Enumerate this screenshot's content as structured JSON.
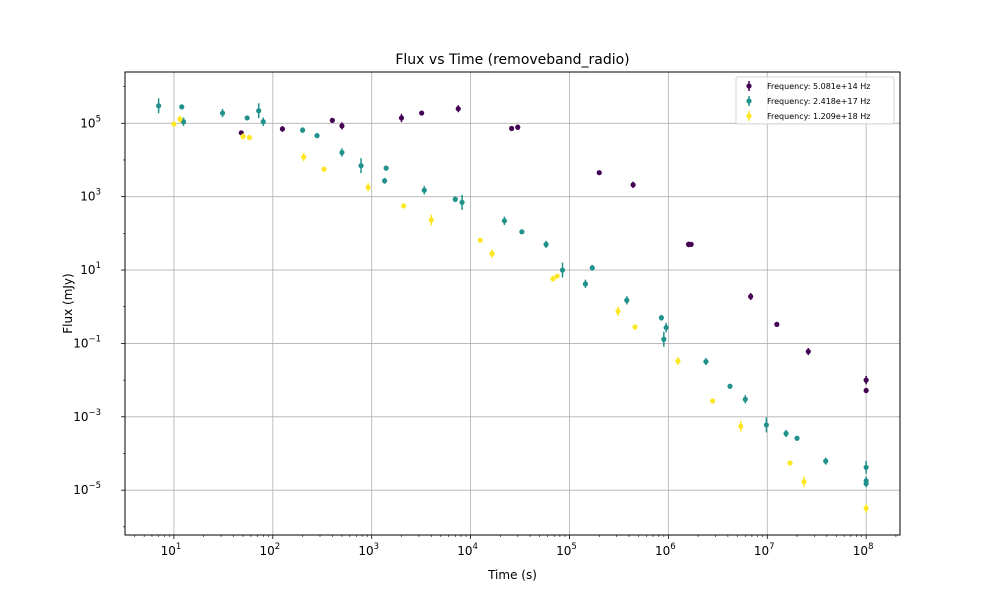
{
  "chart_data": {
    "type": "scatter",
    "title": "Flux vs Time (removeband_radio)",
    "xlabel": "Time (s)",
    "ylabel": "Flux (mJy)",
    "xscale": "log",
    "yscale": "log",
    "xlim": [
      3.2,
      220000000.0
    ],
    "ylim": [
      6e-07,
      2500000.0
    ],
    "grid": true,
    "legend_position": "top-right",
    "x_ticks": [
      {
        "value": 10,
        "base": "10",
        "exp": "1"
      },
      {
        "value": 100,
        "base": "10",
        "exp": "2"
      },
      {
        "value": 1000,
        "base": "10",
        "exp": "3"
      },
      {
        "value": 10000,
        "base": "10",
        "exp": "4"
      },
      {
        "value": 100000,
        "base": "10",
        "exp": "5"
      },
      {
        "value": 1000000,
        "base": "10",
        "exp": "6"
      },
      {
        "value": 10000000,
        "base": "10",
        "exp": "7"
      },
      {
        "value": 100000000,
        "base": "10",
        "exp": "8"
      }
    ],
    "y_ticks": [
      {
        "value": 1e-05,
        "base": "10",
        "exp": "−5"
      },
      {
        "value": 0.001,
        "base": "10",
        "exp": "−3"
      },
      {
        "value": 0.1,
        "base": "10",
        "exp": "−1"
      },
      {
        "value": 10,
        "base": "10",
        "exp": "1"
      },
      {
        "value": 1000,
        "base": "10",
        "exp": "3"
      },
      {
        "value": 100000,
        "base": "10",
        "exp": "5"
      }
    ],
    "series": [
      {
        "name": "Frequency: 5.081e+14 Hz",
        "color": "#440154",
        "points": [
          [
            48,
            55000,
            1.15
          ],
          [
            125,
            70000,
            1.2
          ],
          [
            400,
            120000,
            1.1
          ],
          [
            500,
            85000,
            1.25
          ],
          [
            2000,
            140000,
            1.3
          ],
          [
            3200,
            190000,
            1.12
          ],
          [
            7500,
            250000,
            1.25
          ],
          [
            26000,
            72000,
            1.12
          ],
          [
            30000,
            78000,
            1.18
          ],
          [
            200000,
            4500,
            1.12
          ],
          [
            440000,
            2100,
            1.22
          ],
          [
            1600000,
            50,
            1.2
          ],
          [
            1700000,
            50,
            1.15
          ],
          [
            6800000,
            1.9,
            1.25
          ],
          [
            12500000,
            0.33,
            1.1
          ],
          [
            26000000,
            0.06,
            1.25
          ],
          [
            100000000,
            0.01,
            1.3
          ],
          [
            100000000,
            0.0052,
            1.15
          ]
        ]
      },
      {
        "name": "Frequency: 2.418e+17 Hz",
        "color": "#21918c",
        "points": [
          [
            7,
            300000,
            1.6
          ],
          [
            12,
            280000,
            1.1
          ],
          [
            12.5,
            110000,
            1.3
          ],
          [
            31,
            190000,
            1.3
          ],
          [
            55,
            140000,
            1.15
          ],
          [
            72,
            220000,
            1.6
          ],
          [
            80,
            110000,
            1.3
          ],
          [
            200,
            65000,
            1.2
          ],
          [
            280,
            46000,
            1.12
          ],
          [
            500,
            16000,
            1.3
          ],
          [
            780,
            7000,
            1.6
          ],
          [
            1400,
            6000,
            1.15
          ],
          [
            1350,
            2700,
            1.2
          ],
          [
            3400,
            1500,
            1.3
          ],
          [
            7000,
            850,
            1.2
          ],
          [
            8200,
            700,
            1.6
          ],
          [
            22000,
            220,
            1.3
          ],
          [
            33000,
            110,
            1.15
          ],
          [
            58000,
            50,
            1.25
          ],
          [
            85000,
            10,
            1.6
          ],
          [
            145000,
            4.2,
            1.3
          ],
          [
            170000,
            11.5,
            1.2
          ],
          [
            380000,
            1.5,
            1.3
          ],
          [
            850000,
            0.5,
            1.2
          ],
          [
            950000,
            0.27,
            1.35
          ],
          [
            900000,
            0.13,
            1.6
          ],
          [
            2400000,
            0.032,
            1.25
          ],
          [
            4200000,
            0.0068,
            1.15
          ],
          [
            6000000,
            0.003,
            1.3
          ],
          [
            9800000,
            0.0006,
            1.6
          ],
          [
            15500000,
            0.00035,
            1.25
          ],
          [
            20000000,
            0.00026,
            1.15
          ],
          [
            39000000,
            6.2e-05,
            1.25
          ],
          [
            100000000,
            4.2e-05,
            1.5
          ],
          [
            100000000,
            1.8e-05,
            1.3
          ],
          [
            100000000,
            1.5e-05,
            1.25
          ]
        ]
      },
      {
        "name": "Frequency: 1.209e+18 Hz",
        "color": "#fde725",
        "points": [
          [
            10,
            95000,
            1.15
          ],
          [
            11.5,
            130000,
            1.25
          ],
          [
            50,
            44000,
            1.2
          ],
          [
            58,
            41000,
            1.15
          ],
          [
            205,
            12000,
            1.3
          ],
          [
            330,
            5600,
            1.15
          ],
          [
            920,
            1800,
            1.3
          ],
          [
            2100,
            560,
            1.15
          ],
          [
            4000,
            230,
            1.4
          ],
          [
            12500,
            65,
            1.15
          ],
          [
            16500,
            28,
            1.3
          ],
          [
            68000,
            5.8,
            1.2
          ],
          [
            75000,
            6.8,
            1.15
          ],
          [
            310000,
            0.75,
            1.35
          ],
          [
            460000,
            0.28,
            1.15
          ],
          [
            1250000,
            0.033,
            1.3
          ],
          [
            2800000,
            0.0027,
            1.15
          ],
          [
            5400000,
            0.00055,
            1.4
          ],
          [
            17000000,
            5.5e-05,
            1.15
          ],
          [
            23500000,
            1.7e-05,
            1.4
          ],
          [
            100000000,
            3.2e-06,
            1.3
          ]
        ]
      }
    ]
  }
}
